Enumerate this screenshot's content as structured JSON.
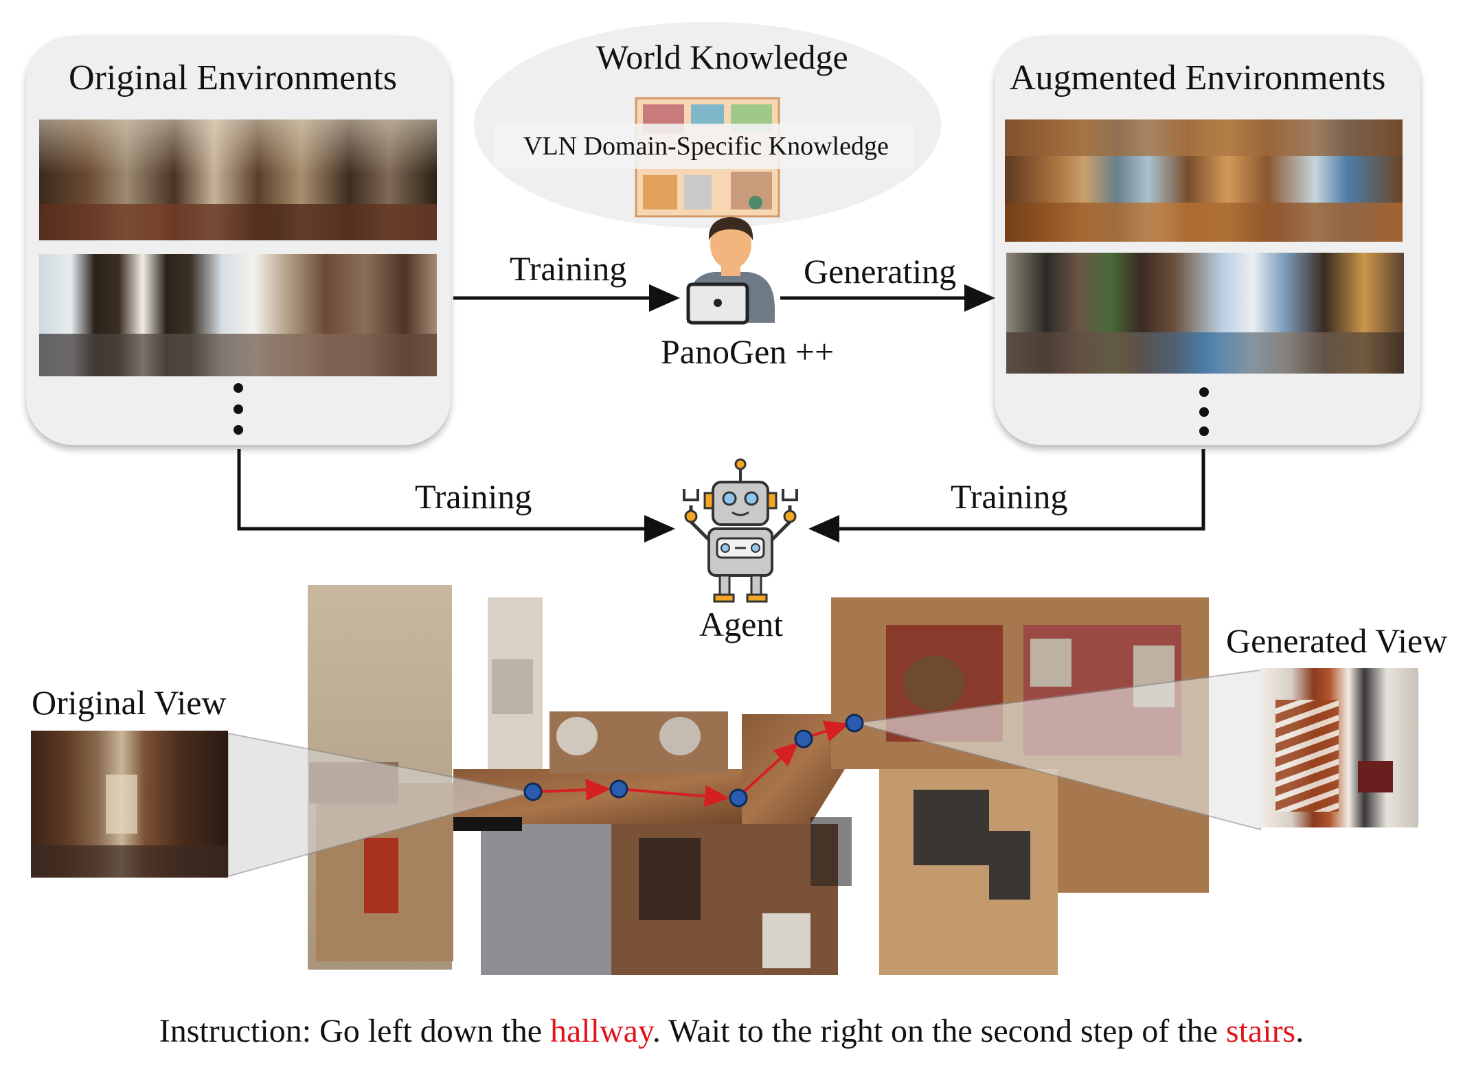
{
  "original_environments": {
    "title": "Original Environments",
    "images": [
      {
        "icon": "panorama-living-room-photo"
      },
      {
        "icon": "panorama-curtained-room-photo"
      }
    ],
    "more_icon": "vertical-ellipsis"
  },
  "world_knowledge": {
    "title": "World Knowledge",
    "vln_label": "VLN Domain-Specific Knowledge",
    "icon": "floor-plan-icon"
  },
  "panogen": {
    "label": "PanoGen ++",
    "icon": "person-laptop-icon"
  },
  "augmented_environments": {
    "title": "Augmented Environments",
    "images": [
      {
        "icon": "generated-panorama-lake-view-photo"
      },
      {
        "icon": "generated-panorama-mountain-view-photo"
      }
    ],
    "more_icon": "vertical-ellipsis"
  },
  "edges": {
    "training_to_panogen": "Training",
    "generating": "Generating",
    "training_left": "Training",
    "training_right": "Training"
  },
  "agent": {
    "label": "Agent",
    "icon": "robot-icon"
  },
  "map": {
    "icon": "3d-floor-map-photo",
    "original_view_label": "Original View",
    "generated_view_label": "Generated View",
    "path_color": "#d42020",
    "node_color": "#2a5db0"
  },
  "instruction": {
    "prefix": "Instruction: Go left down the ",
    "word1": "hallway",
    "middle": ". Wait to the right on the second step of the ",
    "word2": "stairs",
    "suffix": ".",
    "highlight_color": "#e0151a"
  },
  "colors": {
    "panel_bg": "#efefef",
    "arrow": "#111111",
    "robot_orange": "#f5a623",
    "robot_body": "#c9c9c9",
    "robot_blue": "#8fc6ee"
  }
}
